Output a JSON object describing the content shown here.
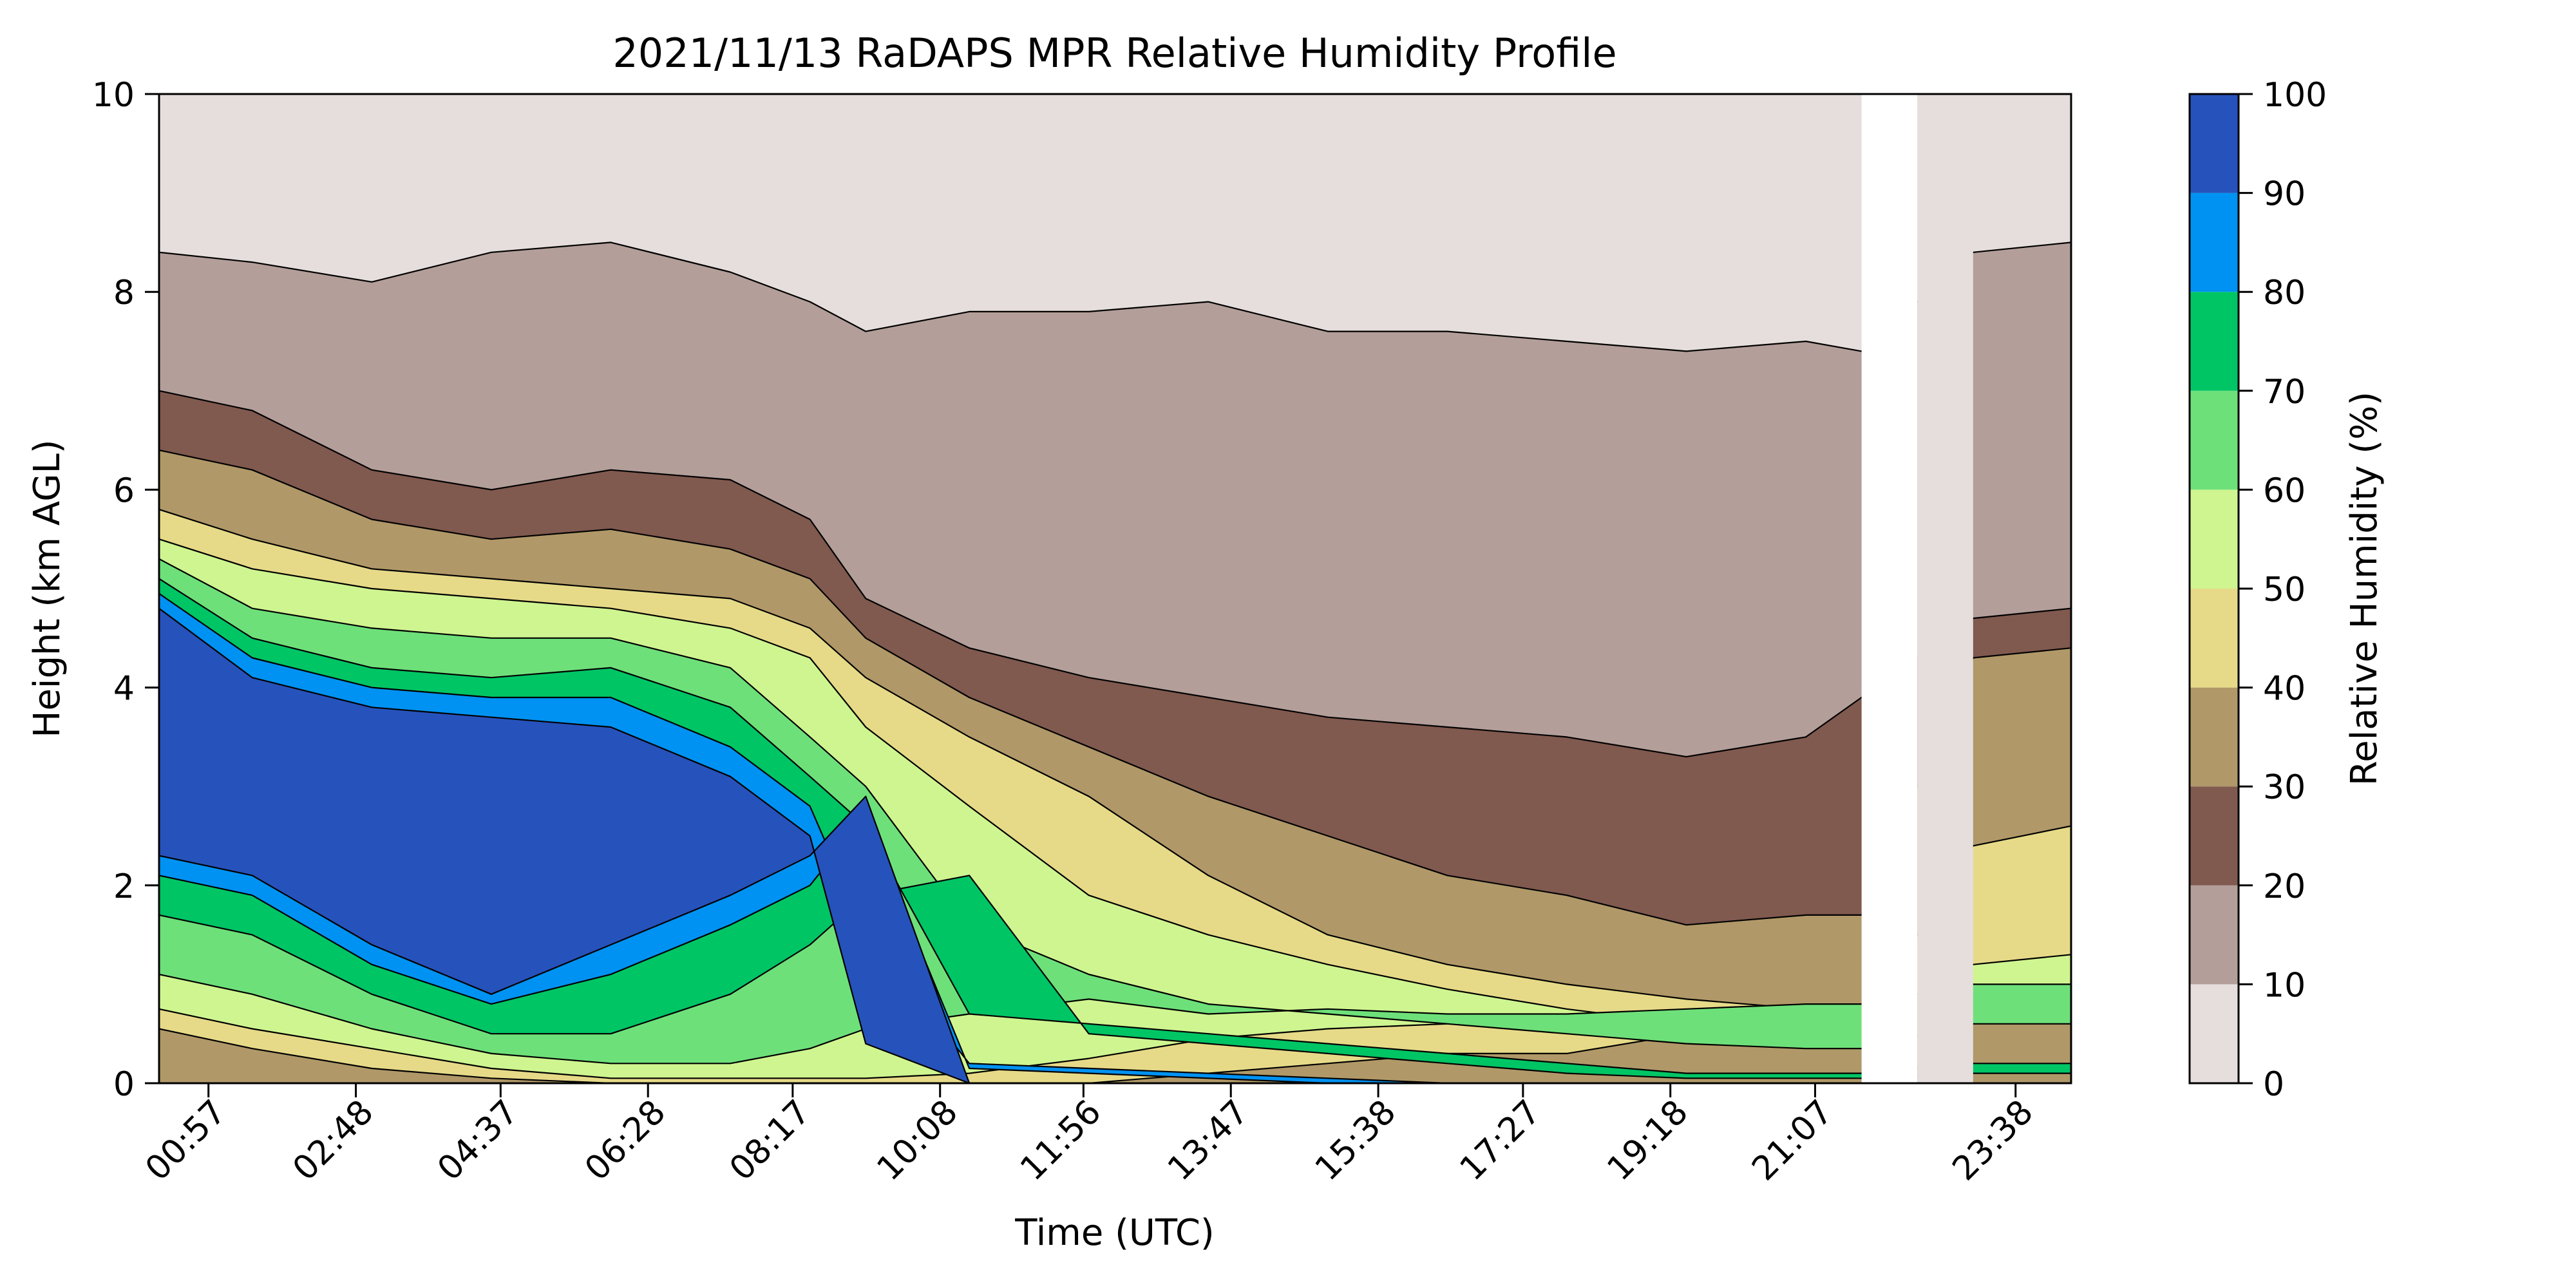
{
  "chart_data": {
    "type": "heatmap",
    "subtype": "filled-contour",
    "title": "2021/11/13 RaDAPS MPR Relative Humidity Profile",
    "xlabel": "Time (UTC)",
    "ylabel": "Height (km AGL)",
    "xlim_hours": [
      0.33,
      24.33
    ],
    "ylim": [
      0,
      10
    ],
    "x_ticks": [
      {
        "hours": 0.95,
        "label": "00:57"
      },
      {
        "hours": 2.8,
        "label": "02:48"
      },
      {
        "hours": 4.617,
        "label": "04:37"
      },
      {
        "hours": 6.467,
        "label": "06:28"
      },
      {
        "hours": 8.283,
        "label": "08:17"
      },
      {
        "hours": 10.133,
        "label": "10:08"
      },
      {
        "hours": 11.933,
        "label": "11:56"
      },
      {
        "hours": 13.783,
        "label": "13:47"
      },
      {
        "hours": 15.633,
        "label": "15:38"
      },
      {
        "hours": 17.45,
        "label": "17:27"
      },
      {
        "hours": 19.3,
        "label": "19:18"
      },
      {
        "hours": 21.117,
        "label": "21:07"
      },
      {
        "hours": 23.633,
        "label": "23:38"
      }
    ],
    "y_ticks": [
      {
        "value": 0,
        "label": "0"
      },
      {
        "value": 2,
        "label": "2"
      },
      {
        "value": 4,
        "label": "4"
      },
      {
        "value": 6,
        "label": "6"
      },
      {
        "value": 8,
        "label": "8"
      },
      {
        "value": 10,
        "label": "10"
      }
    ],
    "colorbar": {
      "label": "Relative Humidity (%)",
      "levels": [
        0,
        10,
        20,
        30,
        40,
        50,
        60,
        70,
        80,
        90,
        100
      ],
      "tick_labels": [
        "0",
        "10",
        "20",
        "30",
        "40",
        "50",
        "60",
        "70",
        "80",
        "90",
        "100"
      ],
      "colors": [
        "#e6dedc",
        "#b39e99",
        "#80594f",
        "#b09868",
        "#e6da88",
        "#cff590",
        "#6ee07a",
        "#00c565",
        "#0092f2",
        "#2652bb"
      ]
    },
    "data_gaps_hours": [
      [
        21.7,
        22.4
      ],
      [
        22.4,
        23.1
      ]
    ],
    "profile_hours": [
      0.33,
      1.5,
      3,
      4.5,
      6,
      7.5,
      8.5,
      9.2,
      10.5,
      12,
      13.5,
      15,
      16.5,
      18,
      19.5,
      21,
      21.7,
      23.1,
      24.33
    ],
    "contour_boundaries_km": [
      {
        "min_rh": 0,
        "heights": [
          10,
          10,
          10,
          10,
          10,
          10,
          10,
          10,
          10,
          10,
          10,
          10,
          10,
          10,
          10,
          10,
          10,
          10,
          10
        ]
      },
      {
        "min_rh": 10,
        "heights": [
          8.4,
          8.3,
          8.1,
          8.4,
          8.5,
          8.2,
          7.9,
          7.6,
          7.8,
          7.8,
          7.9,
          7.6,
          7.6,
          7.5,
          7.4,
          7.5,
          7.4,
          8.4,
          8.5
        ]
      },
      {
        "min_rh": 20,
        "heights": [
          7.0,
          6.8,
          6.2,
          6.0,
          6.2,
          6.1,
          5.7,
          4.9,
          4.4,
          4.1,
          3.9,
          3.7,
          3.6,
          3.5,
          3.3,
          3.5,
          3.9,
          4.7,
          4.8
        ]
      },
      {
        "min_rh": 30,
        "heights": [
          6.4,
          6.2,
          5.7,
          5.5,
          5.6,
          5.4,
          5.1,
          4.5,
          3.9,
          3.4,
          2.9,
          2.5,
          2.1,
          1.9,
          1.6,
          1.7,
          1.7,
          4.3,
          4.4
        ]
      },
      {
        "min_rh": 40,
        "heights": [
          5.8,
          5.5,
          5.2,
          5.1,
          5.0,
          4.9,
          4.6,
          4.1,
          3.5,
          2.9,
          2.1,
          1.5,
          1.2,
          1.0,
          0.85,
          0.75,
          0.6,
          2.4,
          2.6
        ]
      },
      {
        "min_rh": 50,
        "heights": [
          5.5,
          5.2,
          5.0,
          4.9,
          4.8,
          4.6,
          4.3,
          3.6,
          2.8,
          1.9,
          1.5,
          1.2,
          0.95,
          0.75,
          0.6,
          0.5,
          0.5,
          1.2,
          1.3
        ]
      },
      {
        "min_rh": 60,
        "heights": [
          5.3,
          4.8,
          4.6,
          4.5,
          4.5,
          4.2,
          3.5,
          3.0,
          1.6,
          1.1,
          0.8,
          0.7,
          0.6,
          0.5,
          0.4,
          0.35,
          0.35,
          0.6,
          0.6
        ]
      },
      {
        "min_rh": 70,
        "heights": [
          5.1,
          4.5,
          4.2,
          4.1,
          4.2,
          3.8,
          3.1,
          2.6,
          0.7,
          0.6,
          0.5,
          0.4,
          0.3,
          0.2,
          0.1,
          0.1,
          0.1,
          0.2,
          0.2
        ]
      },
      {
        "min_rh": 80,
        "heights": [
          4.95,
          4.3,
          4.0,
          3.9,
          3.9,
          3.4,
          2.8,
          1.5,
          0.2,
          0.15,
          0.1,
          0.05,
          0,
          0,
          0,
          0,
          0,
          0,
          0
        ]
      },
      {
        "min_rh": 90,
        "heights": [
          4.8,
          4.1,
          3.8,
          3.7,
          3.6,
          3.1,
          2.5,
          0.4,
          0,
          0,
          0,
          0,
          0,
          0,
          0,
          0,
          0,
          0,
          0
        ]
      }
    ],
    "contour_lower_km": [
      {
        "min_rh": 0,
        "heights": [
          0,
          0,
          0,
          0,
          0,
          0,
          0,
          0,
          0,
          0,
          0,
          0,
          0,
          0,
          0,
          0,
          0,
          0,
          0
        ]
      },
      {
        "min_rh": 10,
        "heights": [
          0,
          0,
          0,
          0,
          0,
          0,
          0,
          0,
          0,
          0,
          0,
          0,
          0,
          0,
          0,
          0,
          0,
          0,
          0
        ]
      },
      {
        "min_rh": 20,
        "heights": [
          0,
          0,
          0,
          0,
          0,
          0,
          0,
          0,
          0,
          0,
          0,
          0,
          0,
          0,
          0,
          0,
          0,
          0,
          0
        ]
      },
      {
        "min_rh": 30,
        "heights": [
          0,
          0,
          0,
          0,
          0,
          0,
          0,
          0,
          0,
          0,
          0,
          0,
          0,
          0,
          0,
          0,
          0,
          0,
          0
        ]
      },
      {
        "min_rh": 40,
        "heights": [
          0.55,
          0.35,
          0.15,
          0.05,
          0,
          0,
          0,
          0,
          0,
          0,
          0.1,
          0.2,
          0.3,
          0.3,
          0.5,
          0.55,
          0.55,
          0.8,
          0.8
        ]
      },
      {
        "min_rh": 50,
        "heights": [
          0.75,
          0.55,
          0.35,
          0.15,
          0.05,
          0.05,
          0.05,
          0.05,
          0.1,
          0.25,
          0.45,
          0.55,
          0.6,
          0.6,
          0.6,
          0.6,
          0.6,
          0.95,
          0.95
        ]
      },
      {
        "min_rh": 60,
        "heights": [
          1.1,
          0.9,
          0.55,
          0.3,
          0.2,
          0.2,
          0.35,
          0.55,
          0.7,
          0.85,
          0.7,
          0.75,
          0.7,
          0.7,
          0.75,
          0.8,
          0.8,
          1.0,
          1.0
        ]
      },
      {
        "min_rh": 70,
        "heights": [
          1.7,
          1.5,
          0.9,
          0.5,
          0.5,
          0.9,
          1.4,
          1.9,
          2.1,
          0.5,
          0.4,
          0.3,
          0.2,
          0.1,
          0.05,
          0.05,
          0.05,
          0.1,
          0.1
        ]
      },
      {
        "min_rh": 80,
        "heights": [
          2.1,
          1.9,
          1.2,
          0.8,
          1.1,
          1.6,
          2.0,
          2.7,
          0.15,
          0.1,
          0.05,
          0,
          0,
          0,
          0,
          0,
          0,
          0,
          0
        ]
      },
      {
        "min_rh": 90,
        "heights": [
          2.3,
          2.1,
          1.4,
          0.9,
          1.4,
          1.9,
          2.3,
          2.9,
          0,
          0,
          0,
          0,
          0,
          0,
          0,
          0,
          0,
          0,
          0
        ]
      }
    ]
  }
}
